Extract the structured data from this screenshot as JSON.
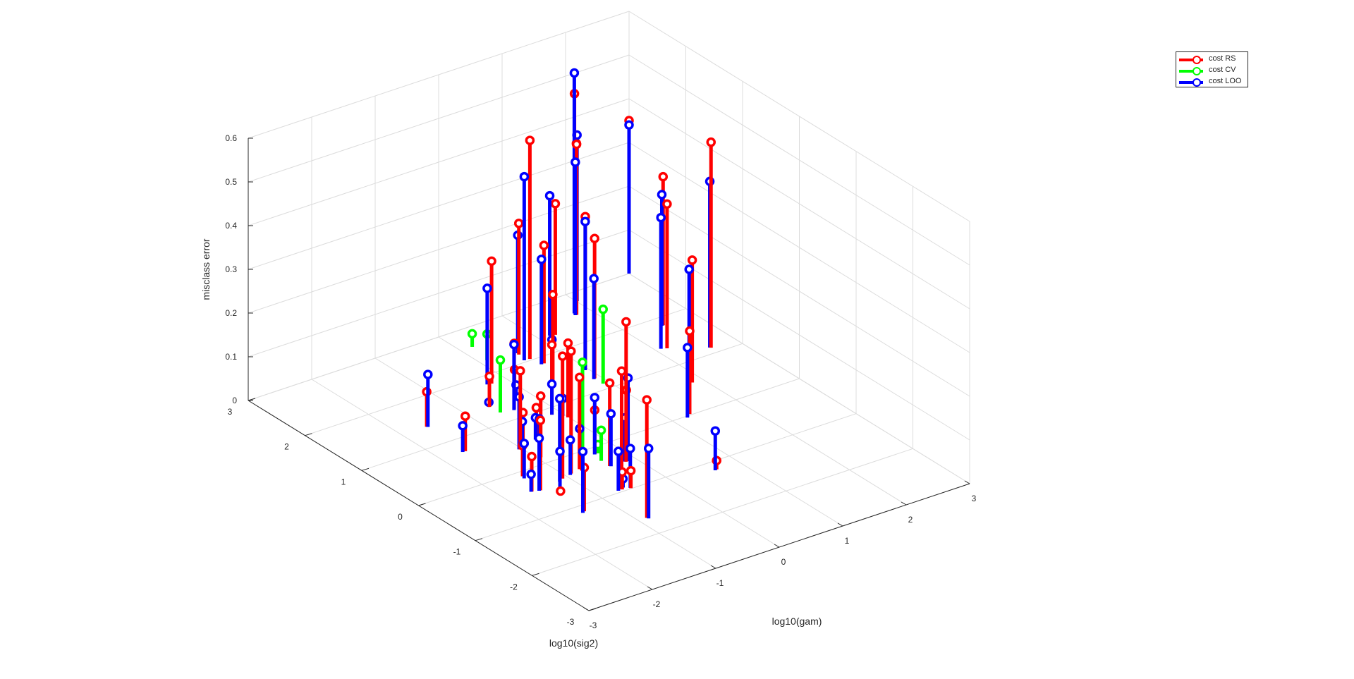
{
  "chart_data": {
    "type": "stem3",
    "title": "",
    "xlabel": "log10(gam)",
    "ylabel": "log10(sig2)",
    "zlabel": "misclass error",
    "xlim": [
      -3,
      3
    ],
    "ylim": [
      -3,
      3
    ],
    "zlim": [
      0,
      0.6
    ],
    "xticks": [
      "-3",
      "-2",
      "-1",
      "0",
      "1",
      "2",
      "3"
    ],
    "yticks": [
      "-3",
      "-2",
      "-1",
      "0",
      "1",
      "2",
      "3"
    ],
    "zticks": [
      "0",
      "0.1",
      "0.2",
      "0.3",
      "0.4",
      "0.5",
      "0.6"
    ],
    "grid": true,
    "legend_position": "top-right",
    "series": [
      {
        "name": "cost RS",
        "color": "#ff0000",
        "points": [
          [
            3,
            3,
            0.35
          ],
          [
            2.49,
            1.83,
            0.34
          ],
          [
            2.15,
            1.38,
            0.33
          ],
          [
            1.84,
            0.59,
            0.28
          ],
          [
            1.29,
            0.02,
            0.19
          ],
          [
            -0.12,
            -0.44,
            0.16
          ],
          [
            0.65,
            -1.17,
            0.02
          ],
          [
            2.01,
            2.82,
            0.36
          ],
          [
            1.23,
            2.32,
            0.3
          ],
          [
            0.64,
            1.86,
            0.27
          ],
          [
            0.35,
            1.38,
            0.21
          ],
          [
            -0.01,
            0.71,
            0.17
          ],
          [
            -1.45,
            -0.1,
            0.07
          ],
          [
            -1.08,
            -0.39,
            0.28
          ],
          [
            1.8,
            2.62,
            0.5
          ],
          [
            0.53,
            2.18,
            0.3
          ],
          [
            -0.23,
            1.81,
            0.28
          ],
          [
            -0.42,
            1.2,
            0.15
          ],
          [
            -0.97,
            0.43,
            0.08
          ],
          [
            -1.5,
            -0.47,
            0.16
          ],
          [
            -1.4,
            -1.13,
            0.1
          ],
          [
            1.78,
            2.56,
            0.39
          ],
          [
            0.57,
            2.03,
            0.5
          ],
          [
            -0.2,
            1.44,
            0.06
          ],
          [
            -1.61,
            1.41,
            0.08
          ],
          [
            -1.62,
            0.72,
            0.08
          ],
          [
            -0.75,
            -0.32,
            0.21
          ],
          [
            -0.65,
            -0.96,
            0.04
          ],
          [
            2.61,
            1.12,
            0.47
          ],
          [
            0.96,
            1.49,
            0.35
          ],
          [
            -0.64,
            1.39,
            0.07
          ],
          [
            -0.95,
            0.14,
            0.14
          ],
          [
            -0.91,
            -0.35,
            0.28
          ],
          [
            -1.38,
            -0.69,
            0.01
          ],
          [
            -0.54,
            -0.99,
            0.04
          ],
          [
            0.91,
            1.27,
            0.32
          ],
          [
            -0.13,
            0.86,
            0.16
          ],
          [
            -0.68,
            0.52,
            0.07
          ],
          [
            -1.03,
            0.41,
            0.18
          ],
          [
            -0.34,
            -0.13,
            0.1
          ],
          [
            -1.61,
            -0.44,
            0.08
          ],
          [
            -0.39,
            -0.45,
            0.19
          ],
          [
            -0.15,
            -0.47,
            0.32
          ],
          [
            -0.65,
            -0.95,
            0.27
          ],
          [
            -0.87,
            -1.64,
            0.27
          ]
        ]
      },
      {
        "name": "cost CV",
        "color": "#00ff00",
        "points": [
          [
            0.18,
            2.61,
            0.03
          ],
          [
            0.11,
            2.27,
            0.06
          ],
          [
            0.91,
            1.12,
            0.17
          ],
          [
            -0.62,
            1.22,
            0.12
          ],
          [
            -0.47,
            -0.06,
            0.21
          ],
          [
            -0.39,
            -0.3,
            0.07
          ],
          [
            -0.3,
            -0.14,
            0.02
          ]
        ]
      },
      {
        "name": "cost LOO",
        "color": "#0000ff",
        "points": [
          [
            3,
            3,
            0.34
          ],
          [
            2.47,
            1.83,
            0.3
          ],
          [
            2.08,
            1.41,
            0.3
          ],
          [
            1.8,
            0.6,
            0.26
          ],
          [
            1.21,
            -0.03,
            0.16
          ],
          [
            -0.16,
            -0.46,
            0.1
          ],
          [
            0.62,
            -1.18,
            0.09
          ],
          [
            2.01,
            2.81,
            0.38
          ],
          [
            1.16,
            2.34,
            0.32
          ],
          [
            0.6,
            1.86,
            0.24
          ],
          [
            0.39,
            1.44,
            0.1
          ],
          [
            -0.04,
            0.77,
            0.04
          ],
          [
            -1.47,
            -0.15,
            0.08
          ],
          [
            -1.16,
            -0.43,
            0.19
          ],
          [
            1.78,
            2.6,
            0.55
          ],
          [
            0.54,
            2.21,
            0.27
          ],
          [
            -0.29,
            1.82,
            0.22
          ],
          [
            -0.44,
            1.18,
            0.15
          ],
          [
            -0.98,
            0.43,
            0.06
          ],
          [
            -1.52,
            -0.47,
            0.12
          ],
          [
            -1.44,
            -1.15,
            0.14
          ],
          [
            1.76,
            2.56,
            0.35
          ],
          [
            0.49,
            2.04,
            0.42
          ],
          [
            -0.22,
            1.39,
            0.03
          ],
          [
            -1.6,
            1.4,
            0.12
          ],
          [
            -1.66,
            0.72,
            0.06
          ],
          [
            -0.73,
            -0.3,
            0.09
          ],
          [
            -0.61,
            -0.93,
            0.02
          ],
          [
            2.6,
            1.13,
            0.38
          ],
          [
            0.95,
            1.48,
            0.34
          ],
          [
            -0.64,
            1.4,
            0.01
          ],
          [
            -0.98,
            0.13,
            0.09
          ],
          [
            -0.94,
            -0.37,
            0.08
          ],
          [
            -1.38,
            -0.68,
            0.1
          ],
          [
            -0.54,
            -0.98,
            0.09
          ],
          [
            0.89,
            1.26,
            0.23
          ],
          [
            -0.13,
            0.86,
            0.07
          ],
          [
            -0.71,
            0.5,
            0.05
          ],
          [
            -1.04,
            0.42,
            0.12
          ],
          [
            -0.35,
            -0.14,
            0.13
          ],
          [
            -1.62,
            -0.44,
            0.04
          ],
          [
            -0.38,
            -0.46,
            0.12
          ],
          [
            -0.12,
            -0.47,
            0.19
          ],
          [
            -0.71,
            -0.96,
            0.09
          ],
          [
            -0.86,
            -1.66,
            0.16
          ]
        ]
      }
    ]
  },
  "legend": {
    "items": [
      {
        "label": "cost RS",
        "color": "#ff0000"
      },
      {
        "label": "cost CV",
        "color": "#00ff00"
      },
      {
        "label": "cost LOO",
        "color": "#0000ff"
      }
    ]
  }
}
